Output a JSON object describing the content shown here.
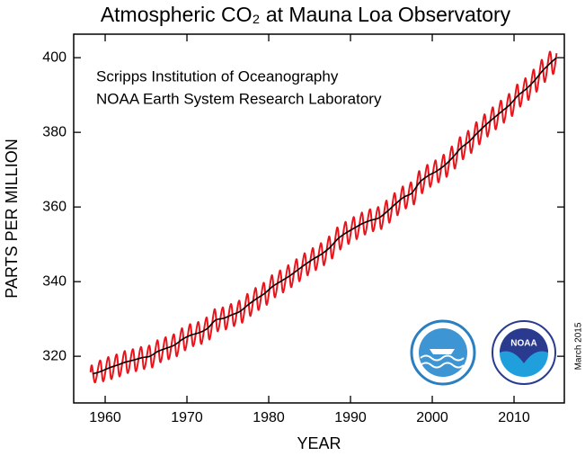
{
  "chart_data": {
    "type": "line",
    "title": "Atmospheric CO₂ at Mauna Loa Observatory",
    "annotations": [
      "Scripps Institution of Oceanography",
      "NOAA Earth System Research Laboratory"
    ],
    "date_note": "March 2015",
    "logo_label": "NOAA",
    "x_label": "YEAR",
    "y_label": "PARTS PER MILLION",
    "xlim": [
      1956.15,
      2016.15
    ],
    "ylim": [
      307.5,
      406.3
    ],
    "xticks": [
      1960,
      1970,
      1980,
      1990,
      2000,
      2010
    ],
    "yticks": [
      320,
      340,
      360,
      380,
      400
    ],
    "series": [
      {
        "color": "#e8141b",
        "x": [
          1958.21,
          1958.38,
          1958.77,
          1959.38,
          1959.77,
          1960.38,
          1960.77,
          1961.38,
          1961.77,
          1962.38,
          1962.77,
          1963.38,
          1963.77,
          1964.38,
          1964.77,
          1965.38,
          1965.77,
          1966.38,
          1966.77,
          1967.38,
          1967.77,
          1968.38,
          1968.77,
          1969.38,
          1969.77,
          1970.38,
          1970.77,
          1971.38,
          1971.77,
          1972.38,
          1972.77,
          1973.38,
          1973.77,
          1974.38,
          1974.77,
          1975.38,
          1975.77,
          1976.38,
          1976.77,
          1977.38,
          1977.77,
          1978.38,
          1978.77,
          1979.38,
          1979.77,
          1980.38,
          1980.77,
          1981.38,
          1981.77,
          1982.38,
          1982.77,
          1983.38,
          1983.77,
          1984.38,
          1984.77,
          1985.38,
          1985.77,
          1986.38,
          1986.77,
          1987.38,
          1987.77,
          1988.38,
          1988.77,
          1989.38,
          1989.77,
          1990.38,
          1990.77,
          1991.38,
          1991.77,
          1992.38,
          1992.77,
          1993.38,
          1993.77,
          1994.38,
          1994.77,
          1995.38,
          1995.77,
          1996.38,
          1996.77,
          1997.38,
          1997.77,
          1998.38,
          1998.77,
          1999.38,
          1999.77,
          2000.38,
          2000.77,
          2001.38,
          2001.77,
          2002.38,
          2002.77,
          2003.38,
          2003.77,
          2004.38,
          2004.77,
          2005.38,
          2005.77,
          2006.38,
          2006.77,
          2007.38,
          2007.77,
          2008.38,
          2008.77,
          2009.38,
          2009.77,
          2010.38,
          2010.77,
          2011.38,
          2011.77,
          2012.38,
          2012.77,
          2013.38,
          2013.77,
          2014.38,
          2014.77,
          2015.21
        ],
        "values": [
          315.7,
          317.5,
          313.0,
          318.9,
          313.3,
          319.8,
          313.9,
          320.5,
          314.6,
          321.4,
          315.5,
          321.9,
          316.0,
          322.5,
          316.6,
          322.9,
          317.0,
          324.3,
          318.4,
          325.1,
          319.2,
          325.9,
          320.0,
          327.5,
          321.6,
          328.6,
          322.7,
          329.2,
          323.3,
          330.4,
          324.5,
          332.6,
          326.7,
          333.1,
          327.2,
          334.0,
          328.1,
          334.9,
          329.0,
          336.7,
          330.8,
          338.3,
          332.4,
          339.7,
          333.8,
          341.7,
          335.8,
          343.0,
          337.1,
          344.4,
          338.5,
          346.0,
          340.1,
          347.6,
          341.7,
          349.0,
          343.1,
          350.3,
          344.4,
          352.1,
          346.2,
          354.5,
          348.6,
          356.0,
          350.1,
          357.3,
          351.4,
          358.5,
          352.6,
          359.4,
          353.5,
          360.0,
          354.1,
          361.7,
          355.8,
          363.7,
          357.8,
          365.5,
          359.6,
          366.6,
          360.7,
          369.6,
          363.7,
          371.3,
          365.4,
          372.5,
          366.6,
          374.0,
          368.1,
          376.2,
          370.3,
          378.7,
          372.8,
          380.4,
          374.5,
          382.7,
          376.8,
          384.8,
          378.9,
          386.7,
          380.8,
          388.5,
          382.6,
          390.3,
          384.4,
          392.8,
          386.9,
          394.5,
          388.7,
          396.8,
          390.9,
          399.4,
          393.5,
          401.6,
          395.6,
          401.2
        ]
      },
      {
        "color": "#000000",
        "x": [
          1958.5,
          1959.5,
          1960.5,
          1961.5,
          1962.5,
          1963.5,
          1964.5,
          1965.5,
          1966.5,
          1967.5,
          1968.5,
          1969.5,
          1970.5,
          1971.5,
          1972.5,
          1973.5,
          1974.5,
          1975.5,
          1976.5,
          1977.5,
          1978.5,
          1979.5,
          1980.5,
          1981.5,
          1982.5,
          1983.5,
          1984.5,
          1985.5,
          1986.5,
          1987.5,
          1988.5,
          1989.5,
          1990.5,
          1991.5,
          1992.5,
          1993.5,
          1994.5,
          1995.5,
          1996.5,
          1997.5,
          1998.5,
          1999.5,
          2000.5,
          2001.5,
          2002.5,
          2003.5,
          2004.5,
          2005.5,
          2006.5,
          2007.5,
          2008.5,
          2009.5,
          2010.5,
          2011.5,
          2012.5,
          2013.5,
          2014.5,
          2015.2
        ],
        "values": [
          315.3,
          315.97,
          316.91,
          317.64,
          318.45,
          318.99,
          319.62,
          320.04,
          321.38,
          322.16,
          323.04,
          324.62,
          325.68,
          326.32,
          327.45,
          329.68,
          330.18,
          331.11,
          332.04,
          333.83,
          335.4,
          336.84,
          338.75,
          340.11,
          341.45,
          343.05,
          344.65,
          346.12,
          347.42,
          349.19,
          351.57,
          353.12,
          354.39,
          355.61,
          356.45,
          357.1,
          358.83,
          360.82,
          362.61,
          363.73,
          366.7,
          368.38,
          369.55,
          371.14,
          373.28,
          375.8,
          377.52,
          379.8,
          381.9,
          383.79,
          385.6,
          387.43,
          389.9,
          391.65,
          393.85,
          396.52,
          398.65,
          400.0
        ]
      }
    ]
  }
}
